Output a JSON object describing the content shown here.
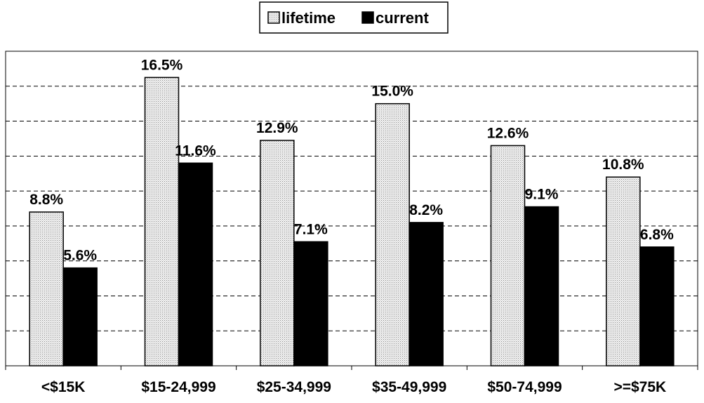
{
  "chart_data": {
    "type": "bar",
    "categories": [
      "<$15K",
      "$15-24,999",
      "$25-34,999",
      "$35-49,999",
      "$50-74,999",
      ">=$75K"
    ],
    "series": [
      {
        "name": "lifetime",
        "values": [
          8.8,
          16.5,
          12.9,
          15.0,
          12.6,
          10.8
        ],
        "labels": [
          "8.8%",
          "16.5%",
          "12.9%",
          "15.0%",
          "12.6%",
          "10.8%"
        ]
      },
      {
        "name": "current",
        "values": [
          5.6,
          11.6,
          7.1,
          8.2,
          9.1,
          6.8
        ],
        "labels": [
          "5.6%",
          "11.6%",
          "7.1%",
          "8.2%",
          "9.1%",
          "6.8%"
        ]
      }
    ],
    "ylim": [
      0,
      18
    ],
    "grid": true,
    "legend_position": "top-center",
    "colors": {
      "lifetime": "#d8d8d8",
      "current": "#000000"
    }
  }
}
